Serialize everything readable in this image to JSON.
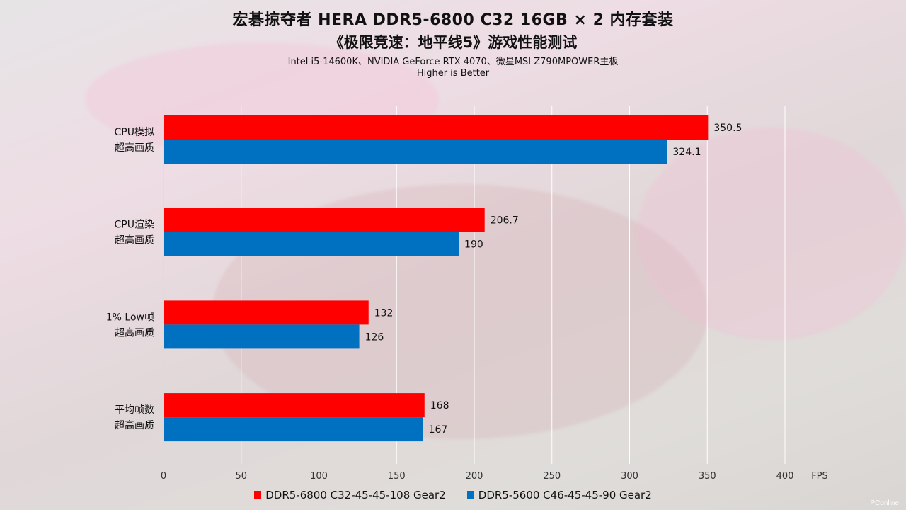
{
  "header": {
    "title": "宏碁掠夺者 HERA DDR5-6800 C32 16GB × 2 内存套装",
    "subtitle": "《极限竞速：地平线5》游戏性能测试",
    "system": "Intel i5-14600K、NVIDIA GeForce RTX 4070、微星MSI Z790MPOWER主板",
    "note": "Higher is Better"
  },
  "watermark": "PConline",
  "chart_data": {
    "type": "bar",
    "orientation": "horizontal",
    "categories": [
      [
        "CPU模拟",
        "超高画质"
      ],
      [
        "CPU渲染",
        "超高画质"
      ],
      [
        "1% Low帧",
        "超高画质"
      ],
      [
        "平均帧数",
        "超高画质"
      ]
    ],
    "series": [
      {
        "name": "DDR5-6800 C32-45-45-108 Gear2",
        "color": "#ff0000",
        "values": [
          350.5,
          206.7,
          132,
          168
        ],
        "labels": [
          "350.5",
          "206.7",
          "132",
          "168"
        ]
      },
      {
        "name": "DDR5-5600 C46-45-45-90 Gear2",
        "color": "#0070c0",
        "values": [
          324.1,
          190,
          126,
          167
        ],
        "labels": [
          "324.1",
          "190",
          "126",
          "167"
        ]
      }
    ],
    "xlim": [
      0,
      400
    ],
    "xticks": [
      "0",
      "50",
      "100",
      "150",
      "200",
      "250",
      "300",
      "350",
      "400"
    ],
    "xlabel": "FPS",
    "grid": "vertical",
    "legend": "bottom"
  }
}
